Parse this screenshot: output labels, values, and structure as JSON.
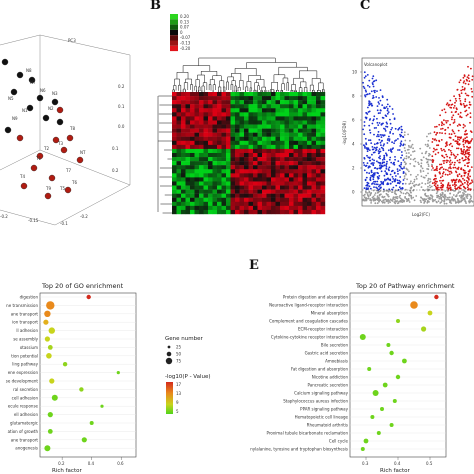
{
  "figure": {
    "panel_labels": {
      "b": "B",
      "c": "C",
      "e": "E"
    }
  },
  "panel_a": {
    "axis_label": "PC3",
    "sample_labels": [
      "N8",
      "N7",
      "N6",
      "N5",
      "N3",
      "N2",
      "N1",
      "T8",
      "T3",
      "T2",
      "T1",
      "T7",
      "T6",
      "T5",
      "T4",
      "T9",
      "NT",
      "N9"
    ],
    "tick_labels": [
      "0.2",
      "0.1",
      "0.0",
      "0.1",
      "0.2",
      "-0.2",
      "-0.15",
      "-0.1",
      "-0.2"
    ],
    "colors": {
      "normal": "#111111",
      "tumor": "#b01c12"
    }
  },
  "panel_b": {
    "legend_values": [
      "0.20",
      "0.13",
      "0.07",
      "0",
      "-0.07",
      "-0.13",
      "-0.20"
    ],
    "colors": {
      "high": "#2bd61e",
      "mid": "#0a0a0a",
      "low": "#e0141b"
    }
  },
  "panel_c": {
    "title": "Volcanoplot",
    "ylabel": "-log10(FDR)",
    "xlabel": "Log2(FC)",
    "y_ticks": [
      "10",
      "8",
      "6",
      "4",
      "2",
      "0"
    ],
    "colors": {
      "down": "#1a2fd1",
      "up": "#d51515",
      "ns": "#9a9a9a"
    }
  },
  "panel_d": {
    "title": "Top 20 of GO enrichment",
    "xlabel": "Rich factor",
    "x_ticks": [
      "0.2",
      "0.4",
      "0.6"
    ],
    "terms": [
      "digestion",
      "ne transmission",
      "ane transport",
      "ion transport",
      "ll adhesion",
      "se assembly",
      "otassium",
      "tion potential",
      "ling pathway",
      "ene expression",
      "se development",
      "ral secretion",
      "cell adhesion",
      "ecule response",
      "ell adhesion",
      "glutamatergic",
      "ation of growth",
      "ane transport",
      "anogenesis"
    ],
    "legend_size_title": "Gene number",
    "legend_sizes": [
      "25",
      "50",
      "75"
    ],
    "legend_color_title": "-log10(P - Value)",
    "legend_color_ticks": [
      "17",
      "13",
      "9",
      "5"
    ],
    "chart_data": {
      "type": "scatter",
      "title": "Top 20 of GO enrichment",
      "xlabel": "Rich factor",
      "x": [
        0.38,
        0.12,
        0.1,
        0.09,
        0.13,
        0.1,
        0.12,
        0.11,
        0.22,
        0.58,
        0.13,
        0.33,
        0.15,
        0.47,
        0.12,
        0.4,
        0.12,
        0.35,
        0.1
      ],
      "categories": [
        "digestion",
        "ne transmission",
        "ane transport",
        "ion transport",
        "ll adhesion",
        "se assembly",
        "otassium",
        "tion potential",
        "ling pathway",
        "ene expression",
        "se development",
        "ral secretion",
        "cell adhesion",
        "ecule response",
        "ell adhesion",
        "glutamatergic",
        "ation of growth",
        "ane transport",
        "anogenesis"
      ]
    }
  },
  "panel_e": {
    "title": "Top 20 of Pathway enrichment",
    "xlabel": "Rich factor",
    "x_ticks": [
      "0.3",
      "0.4",
      "0.5"
    ],
    "pathways": [
      "Protein digestion and absorption",
      "Neuroactive ligand-receptor interaction",
      "Mineral absorption",
      "Complement and coagulation cascades",
      "ECM-receptor interaction",
      "Cytokine-cytokine receptor interaction",
      "Bile secretion",
      "Gastric acid secretion",
      "Amoebiasis",
      "Fat digestion and absorption",
      "Nicotine addiction",
      "Pancreatic secretion",
      "Calcium signaling pathway",
      "Staphylococcus aureus infection",
      "PPAR signaling pathway",
      "Hematopoietic cell lineage",
      "Rheumatoid arthritis",
      "Proximal tubule bicarbonate reclamation",
      "Cell cycle",
      "Phenylalanine, tyrosine and tryptophan biosynthesis"
    ],
    "chart_data": {
      "type": "scatter",
      "title": "Top 20 of Pathway enrichment",
      "xlabel": "Rich factor",
      "xlim": [
        0.25,
        0.55
      ],
      "x": [
        0.52,
        0.45,
        0.5,
        0.4,
        0.48,
        0.29,
        0.37,
        0.38,
        0.42,
        0.31,
        0.4,
        0.36,
        0.33,
        0.39,
        0.35,
        0.32,
        0.38,
        0.34,
        0.3,
        0.29
      ],
      "categories": [
        "Protein digestion and absorption",
        "Neuroactive ligand-receptor interaction",
        "Mineral absorption",
        "Complement and coagulation cascades",
        "ECM-receptor interaction",
        "Cytokine-cytokine receptor interaction",
        "Bile secretion",
        "Gastric acid secretion",
        "Amoebiasis",
        "Fat digestion and absorption",
        "Nicotine addiction",
        "Pancreatic secretion",
        "Calcium signaling pathway",
        "Staphylococcus aureus infection",
        "PPAR signaling pathway",
        "Hematopoietic cell lineage",
        "Rheumatoid arthritis",
        "Proximal tubule bicarbonate reclamation",
        "Cell cycle",
        "Phenylalanine, tyrosine and tryptophan biosynthesis"
      ]
    }
  }
}
